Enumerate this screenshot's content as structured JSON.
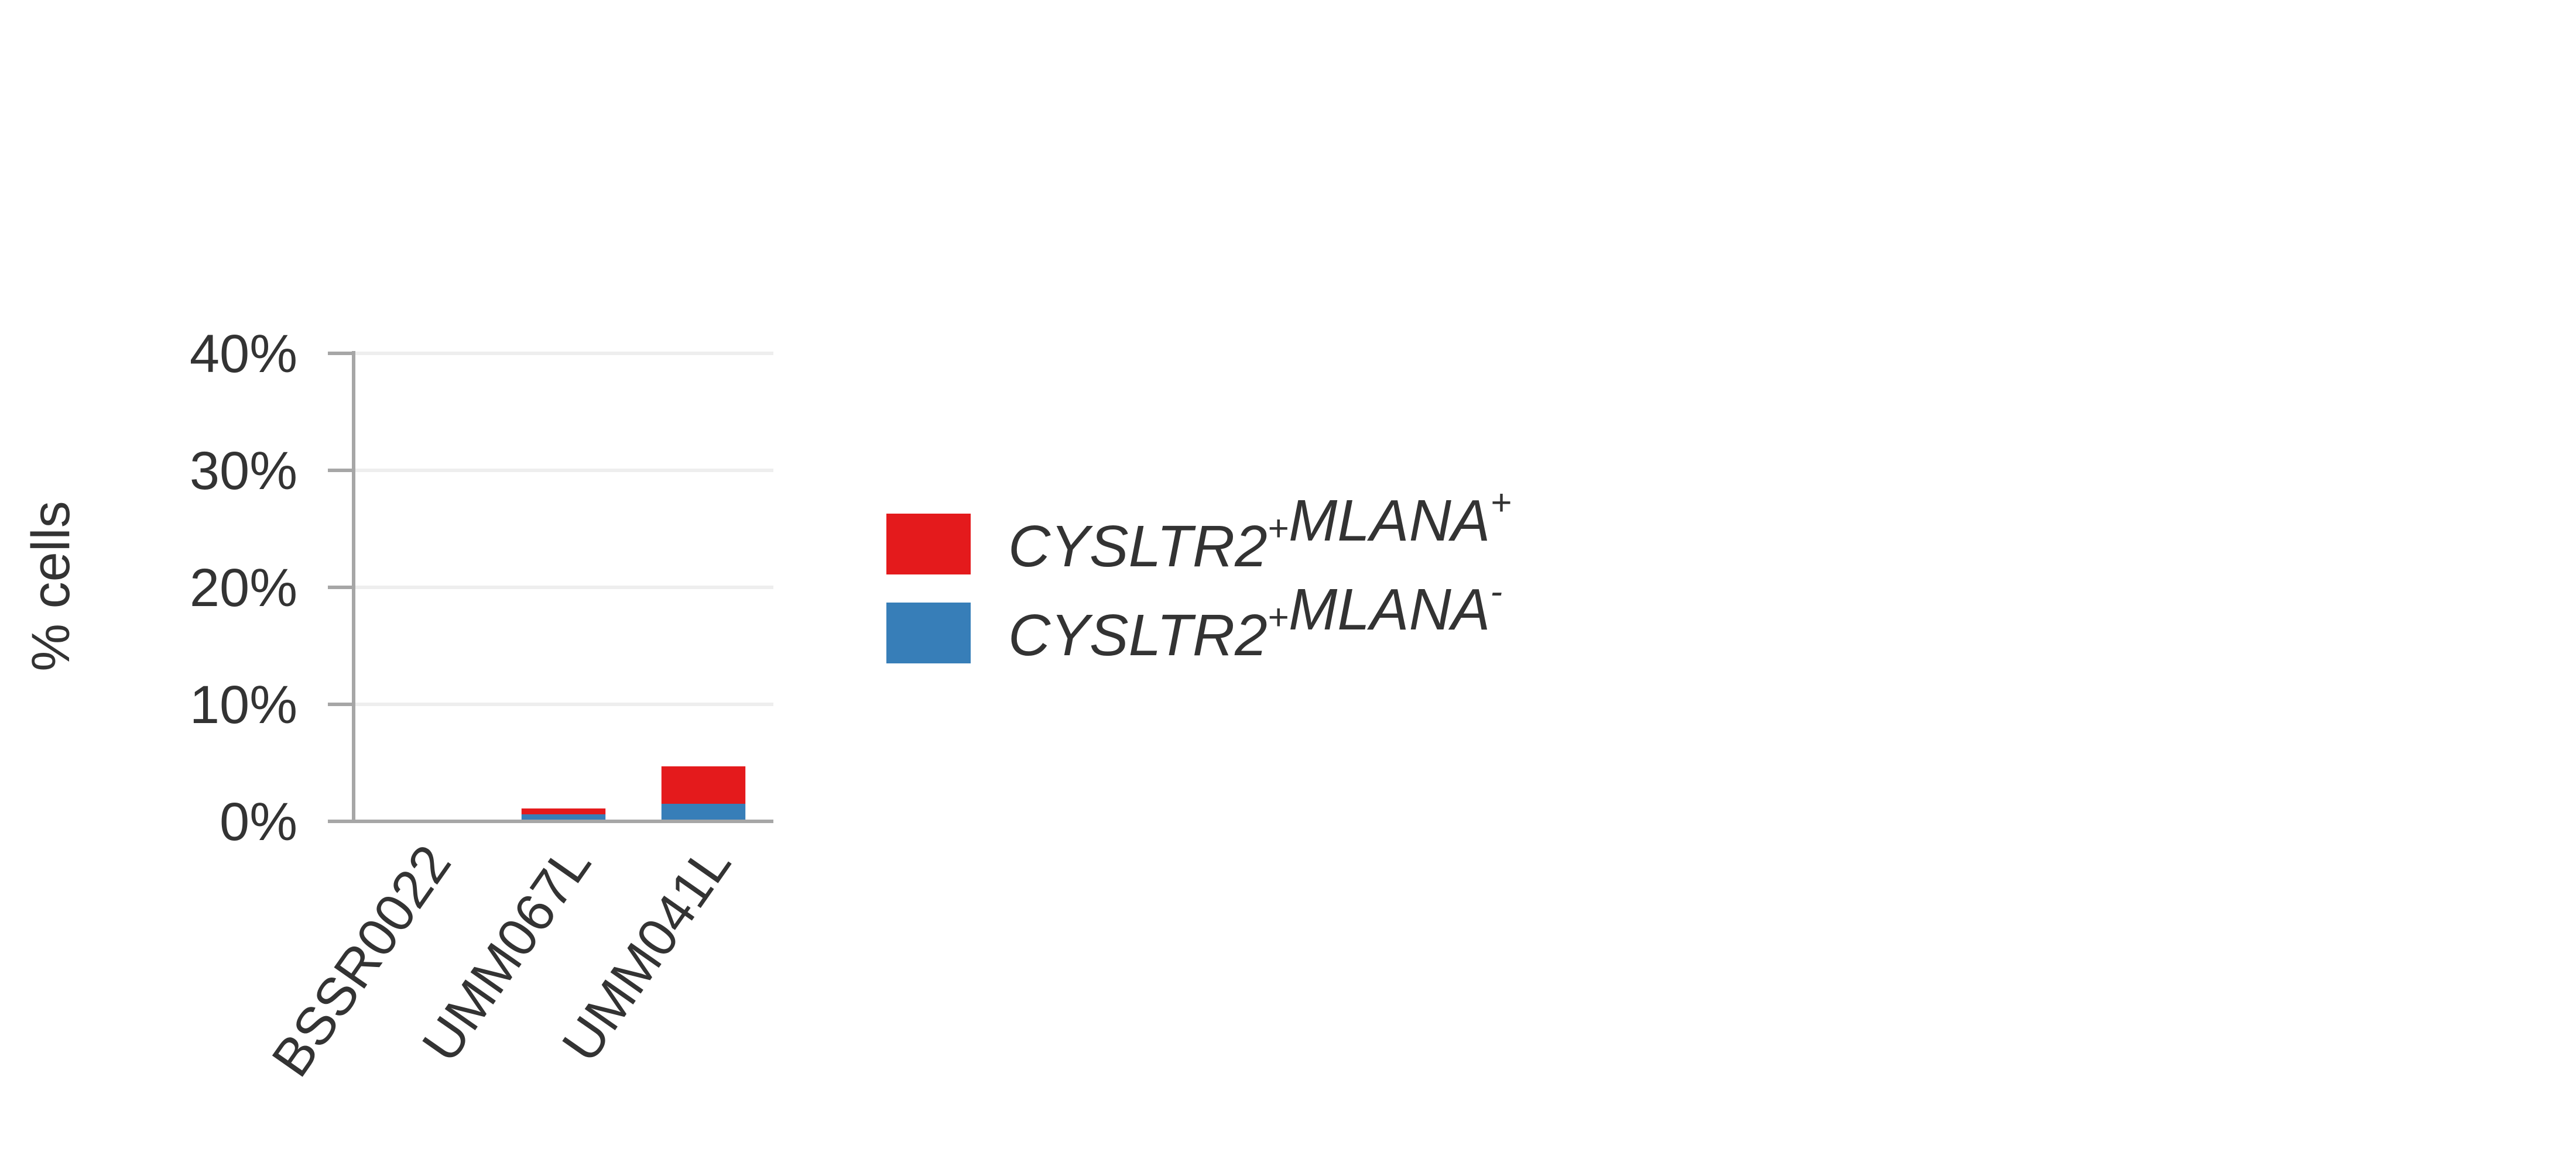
{
  "chart_data": {
    "type": "bar",
    "stacked": true,
    "categories": [
      "BSSR0022",
      "UMM067L",
      "UMM041L"
    ],
    "series": [
      {
        "name": "CYSLTR2+MLANA-",
        "color": "#377EB8",
        "values": [
          0,
          0.6,
          1.5
        ]
      },
      {
        "name": "CYSLTR2+MLANA+",
        "color": "#E41A1C",
        "values": [
          0,
          0.5,
          3.2
        ]
      }
    ],
    "ylabel": "% cells",
    "ylim": [
      0,
      40
    ],
    "yticks": [
      0,
      10,
      20,
      30,
      40
    ],
    "ytick_labels": [
      "0%",
      "10%",
      "20%",
      "30%",
      "40%"
    ],
    "grid": true,
    "legend": {
      "placement": "right",
      "entries": [
        {
          "gene1": "CYSLTR2",
          "sign1": "+",
          "gene2": "MLANA",
          "sign2": "+",
          "color": "#E41A1C"
        },
        {
          "gene1": "CYSLTR2",
          "sign1": "+",
          "gene2": "MLANA",
          "sign2": "-",
          "color": "#377EB8"
        }
      ]
    }
  }
}
